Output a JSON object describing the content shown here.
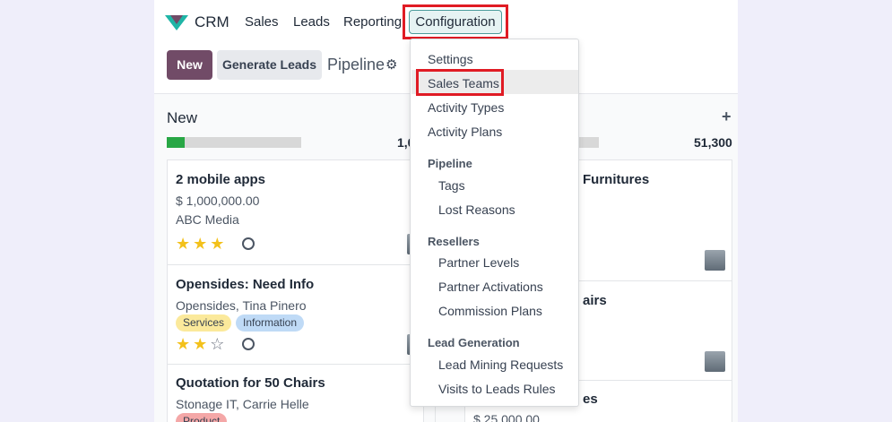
{
  "nav": {
    "app": "CRM",
    "items": [
      "Sales",
      "Leads",
      "Reporting",
      "Configuration"
    ]
  },
  "toolbar": {
    "new": "New",
    "generate": "Generate Leads",
    "view": "Pipeline"
  },
  "columns": [
    {
      "title": "New",
      "progress_percent": 13,
      "total": "1,0",
      "cards": [
        {
          "title": "2 mobile apps",
          "amount": "$ 1,000,000.00",
          "company": "ABC Media",
          "stars": 3
        },
        {
          "title": "Opensides: Need Info",
          "company": "Opensides, Tina Pinero",
          "tags": [
            "Services",
            "Information"
          ],
          "stars": 2
        },
        {
          "title": "Quotation for 50 Chairs",
          "company": "Stonage IT, Carrie Helle",
          "tags": [
            "Product"
          ]
        }
      ]
    },
    {
      "title": "",
      "total": "51,300",
      "cards": [
        {
          "title": "Furnitures"
        },
        {
          "title": "airs"
        },
        {
          "title": "es",
          "amount": "$ 25,000.00"
        }
      ]
    }
  ],
  "menu": {
    "items": [
      "Settings",
      "Sales Teams",
      "Activity Types",
      "Activity Plans"
    ],
    "sections": [
      {
        "header": "Pipeline",
        "items": [
          "Tags",
          "Lost Reasons"
        ]
      },
      {
        "header": "Resellers",
        "items": [
          "Partner Levels",
          "Partner Activations",
          "Commission Plans"
        ]
      },
      {
        "header": "Lead Generation",
        "items": [
          "Lead Mining Requests",
          "Visits to Leads Rules"
        ]
      }
    ],
    "highlighted": "Sales Teams"
  },
  "colors": {
    "brand": "#714b67",
    "highlight": "#e01b24",
    "tag_services": "#fbe99b",
    "tag_information": "#bfdaf6",
    "tag_product": "#f4a7a7"
  }
}
